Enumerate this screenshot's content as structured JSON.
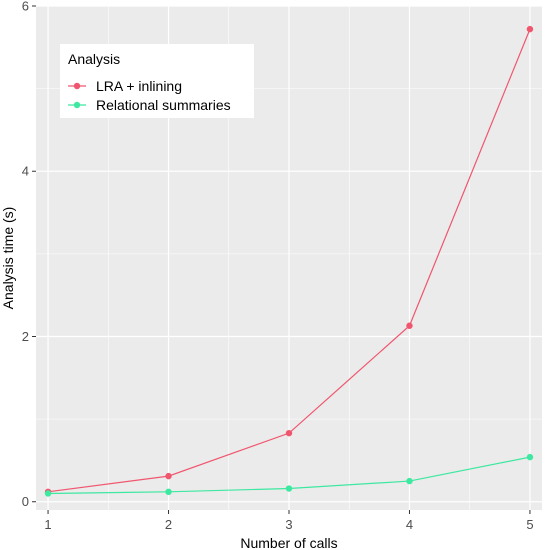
{
  "chart_data": {
    "type": "line",
    "title": "",
    "xlabel": "Number of calls",
    "ylabel": "Analysis time (s)",
    "x": [
      1,
      2,
      3,
      4,
      5
    ],
    "xlim": [
      0.9,
      5.1
    ],
    "ylim": [
      -0.1,
      6.0
    ],
    "xticks": [
      1,
      2,
      3,
      4,
      5
    ],
    "yticks": [
      0,
      2,
      4,
      6
    ],
    "grid": true,
    "legend": {
      "title": "Analysis",
      "position": "top-left"
    },
    "series": [
      {
        "name": "LRA + inlining",
        "color": "#F0566E",
        "values": [
          0.12,
          0.31,
          0.83,
          2.13,
          5.72
        ]
      },
      {
        "name": "Relational summaries",
        "color": "#3DE8A0",
        "values": [
          0.1,
          0.12,
          0.16,
          0.25,
          0.54
        ]
      }
    ],
    "background": "#EBEBEB"
  }
}
